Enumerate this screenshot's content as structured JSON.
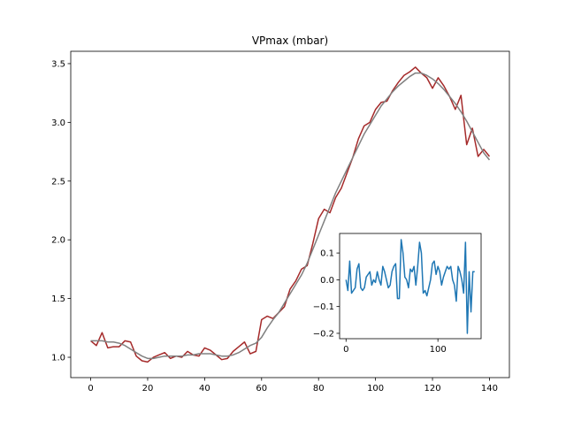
{
  "chart_data": [
    {
      "type": "line",
      "title": "VPmax (mbar)",
      "x": [
        0,
        2,
        4,
        6,
        8,
        10,
        12,
        14,
        16,
        18,
        20,
        22,
        24,
        26,
        28,
        30,
        32,
        34,
        36,
        38,
        40,
        42,
        44,
        46,
        48,
        50,
        52,
        54,
        56,
        58,
        60,
        62,
        64,
        66,
        68,
        70,
        72,
        74,
        76,
        78,
        80,
        82,
        84,
        86,
        88,
        90,
        92,
        94,
        96,
        98,
        100,
        102,
        104,
        106,
        108,
        110,
        112,
        114,
        116,
        118,
        120,
        122,
        124,
        126,
        128,
        130,
        132,
        134,
        136,
        138,
        140
      ],
      "series": [
        {
          "color": "#a52a2a",
          "values": [
            1.14,
            1.1,
            1.21,
            1.08,
            1.09,
            1.09,
            1.14,
            1.13,
            1.01,
            0.97,
            0.96,
            1.0,
            1.02,
            1.04,
            0.99,
            1.01,
            1.0,
            1.05,
            1.02,
            1.01,
            1.08,
            1.06,
            1.02,
            0.98,
            0.99,
            1.05,
            1.09,
            1.13,
            1.03,
            1.05,
            1.32,
            1.35,
            1.33,
            1.38,
            1.43,
            1.58,
            1.65,
            1.75,
            1.78,
            1.97,
            2.18,
            2.26,
            2.23,
            2.36,
            2.44,
            2.57,
            2.7,
            2.86,
            2.97,
            3.0,
            3.11,
            3.17,
            3.18,
            3.27,
            3.34,
            3.4,
            3.43,
            3.47,
            3.42,
            3.38,
            3.29,
            3.38,
            3.31,
            3.22,
            3.11,
            3.23,
            2.81,
            2.95,
            2.71,
            2.77,
            2.71
          ]
        },
        {
          "color": "#808080",
          "values": [
            1.14,
            1.14,
            1.14,
            1.13,
            1.13,
            1.12,
            1.1,
            1.07,
            1.04,
            1.01,
            0.99,
            0.99,
            1.0,
            1.01,
            1.01,
            1.01,
            1.01,
            1.02,
            1.02,
            1.03,
            1.03,
            1.03,
            1.02,
            1.01,
            1.01,
            1.02,
            1.04,
            1.07,
            1.1,
            1.12,
            1.17,
            1.25,
            1.32,
            1.38,
            1.46,
            1.54,
            1.62,
            1.7,
            1.8,
            1.92,
            2.04,
            2.16,
            2.28,
            2.4,
            2.5,
            2.6,
            2.7,
            2.8,
            2.9,
            2.98,
            3.06,
            3.14,
            3.2,
            3.26,
            3.31,
            3.35,
            3.39,
            3.42,
            3.42,
            3.4,
            3.37,
            3.33,
            3.28,
            3.22,
            3.16,
            3.09,
            3.01,
            2.92,
            2.83,
            2.74,
            2.68
          ]
        }
      ],
      "xlim": [
        -7,
        147
      ],
      "ylim": [
        0.827,
        3.605
      ],
      "xticks": [
        0,
        20,
        40,
        60,
        80,
        100,
        120,
        140
      ],
      "yticks": [
        {
          "value": 1,
          "label": "1.0"
        },
        {
          "value": 1.5,
          "label": "1.5"
        },
        {
          "value": 2,
          "label": "2.0"
        },
        {
          "value": 2.5,
          "label": "2.5"
        },
        {
          "value": 3,
          "label": "3.0"
        },
        {
          "value": 3.5,
          "label": "3.5"
        }
      ]
    },
    {
      "type": "line",
      "x": [
        0,
        2,
        4,
        6,
        8,
        10,
        12,
        14,
        16,
        18,
        20,
        22,
        24,
        26,
        28,
        30,
        32,
        34,
        36,
        38,
        40,
        42,
        44,
        46,
        48,
        50,
        52,
        54,
        56,
        58,
        60,
        62,
        64,
        66,
        68,
        70,
        72,
        74,
        76,
        78,
        80,
        82,
        84,
        86,
        88,
        90,
        92,
        94,
        96,
        98,
        100,
        102,
        104,
        106,
        108,
        110,
        112,
        114,
        116,
        118,
        120,
        122,
        124,
        126,
        128,
        130,
        132,
        134,
        136,
        138,
        140
      ],
      "series": [
        {
          "color": "#1f77b4",
          "values": [
            0.0,
            -0.04,
            0.07,
            -0.05,
            -0.04,
            -0.03,
            0.04,
            0.06,
            -0.03,
            -0.04,
            -0.03,
            0.01,
            0.02,
            0.03,
            -0.02,
            0.0,
            -0.01,
            0.03,
            0.0,
            -0.02,
            0.05,
            0.03,
            0.0,
            -0.03,
            -0.02,
            0.03,
            0.05,
            0.06,
            -0.07,
            -0.07,
            0.15,
            0.1,
            0.01,
            0.0,
            -0.03,
            0.04,
            0.03,
            0.05,
            -0.02,
            0.05,
            0.14,
            0.1,
            -0.05,
            -0.04,
            -0.06,
            -0.03,
            0.0,
            0.06,
            0.07,
            0.02,
            0.05,
            0.03,
            -0.02,
            0.01,
            0.03,
            0.05,
            0.04,
            0.05,
            0.0,
            -0.02,
            -0.08,
            0.05,
            0.03,
            0.0,
            -0.05,
            0.14,
            -0.2,
            0.03,
            -0.12,
            0.03,
            0.03
          ]
        }
      ],
      "xlim": [
        -7,
        147
      ],
      "ylim": [
        -0.22,
        0.173
      ],
      "xticks": [
        0,
        100
      ],
      "yticks": [
        {
          "value": -0.2,
          "label": "−0.2"
        },
        {
          "value": -0.1,
          "label": "−0.1"
        },
        {
          "value": 0,
          "label": "0.0"
        },
        {
          "value": 0.1,
          "label": "0.1"
        }
      ]
    }
  ]
}
